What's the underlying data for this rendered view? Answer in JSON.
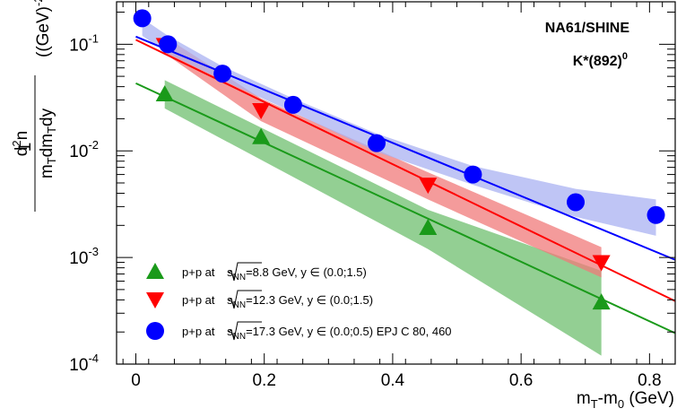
{
  "chart_data": {
    "type": "scatter",
    "title": "",
    "annotation_lines": [
      "NA61/SHINE",
      "K*(892)",
      "0"
    ],
    "xlabel": {
      "text_main": "m",
      "sub1": "T",
      "text_mid": "-m",
      "sub2": "0",
      "text_end": " (GeV)"
    },
    "ylabel": {
      "numerator": "d",
      "numerator_sup": "2",
      "numerator_end": "n",
      "denominator_pre": "m",
      "denominator_sub": "T",
      "denominator_mid": "dm",
      "denominator_sub2": "T",
      "denominator_end": "dy",
      "units_pre": "((GeV)",
      "units_sup": "-2",
      "units_end": ")",
      "one": "1"
    },
    "xlim": [
      -0.03,
      0.84
    ],
    "ylim": [
      0.0001,
      0.25
    ],
    "yscale": "log",
    "grid": false,
    "legend_position": "bottom-left",
    "x_ticks": [
      {
        "value": 0,
        "label": "0"
      },
      {
        "value": 0.2,
        "label": "0.2"
      },
      {
        "value": 0.4,
        "label": "0.4"
      },
      {
        "value": 0.6,
        "label": "0.6"
      },
      {
        "value": 0.8,
        "label": "0.8"
      }
    ],
    "y_ticks": [
      {
        "value": 0.0001,
        "base": "10",
        "exp": "-4"
      },
      {
        "value": 0.001,
        "base": "10",
        "exp": "-3"
      },
      {
        "value": 0.01,
        "base": "10",
        "exp": "-2"
      },
      {
        "value": 0.1,
        "base": "10",
        "exp": "-1"
      }
    ],
    "series": [
      {
        "marker": "triangle-up",
        "color": "#1a9a1a",
        "band_color": "#6fbf6f",
        "legend": {
          "pre": "p+p at ",
          "sqrt_var": "s",
          "sqrt_sub": "NN",
          "post": "=8.8 GeV, y ∈ (0.0;1.5)"
        },
        "x": [
          0.045,
          0.195,
          0.455,
          0.725
        ],
        "y": [
          0.034,
          0.0135,
          0.0019,
          0.00038
        ],
        "band": {
          "x": [
            0.045,
            0.455,
            0.725
          ],
          "y_low": [
            0.025,
            0.0012,
            0.00012
          ],
          "y_high": [
            0.046,
            0.0028,
            0.00075
          ]
        },
        "fit": {
          "x": [
            0.0,
            0.84
          ],
          "y": [
            0.043,
            0.000195
          ]
        }
      },
      {
        "marker": "triangle-down",
        "color": "#ff0000",
        "band_color": "#f07a7a",
        "legend": {
          "pre": "p+p at ",
          "sqrt_var": "s",
          "sqrt_sub": "NN",
          "post": "=12.3 GeV, y ∈ (0.0;1.5)"
        },
        "x": [
          0.045,
          0.195,
          0.455,
          0.725
        ],
        "y": [
          0.098,
          0.024,
          0.0048,
          0.0009
        ],
        "band": {
          "x": [
            0.045,
            0.195,
            0.455,
            0.725
          ],
          "y_low": [
            0.082,
            0.019,
            0.0035,
            0.00065
          ],
          "y_high": [
            0.118,
            0.031,
            0.0063,
            0.00125
          ]
        },
        "fit": {
          "x": [
            0.0,
            0.84
          ],
          "y": [
            0.11,
            0.00039
          ]
        }
      },
      {
        "marker": "circle",
        "color": "#0000ff",
        "band_color": "#aab2f2",
        "legend": {
          "pre": "p+p at ",
          "sqrt_var": "s",
          "sqrt_sub": "NN",
          "post": "=17.3 GeV, y ∈ (0.0;0.5)  EPJ C 80, 460"
        },
        "x": [
          0.01,
          0.05,
          0.135,
          0.245,
          0.375,
          0.525,
          0.685,
          0.81
        ],
        "y": [
          0.175,
          0.1,
          0.053,
          0.027,
          0.0118,
          0.006,
          0.0033,
          0.0025
        ],
        "band": {
          "x": [
            0.01,
            0.05,
            0.135,
            0.245,
            0.375,
            0.525,
            0.685,
            0.81
          ],
          "y_low": [
            0.12,
            0.082,
            0.046,
            0.023,
            0.0098,
            0.0048,
            0.0024,
            0.0016
          ],
          "y_high": [
            0.175,
            0.12,
            0.062,
            0.031,
            0.0145,
            0.0072,
            0.0044,
            0.0035
          ]
        },
        "fit": {
          "x": [
            0.0,
            0.84
          ],
          "y": [
            0.118,
            0.00095
          ]
        }
      }
    ]
  }
}
